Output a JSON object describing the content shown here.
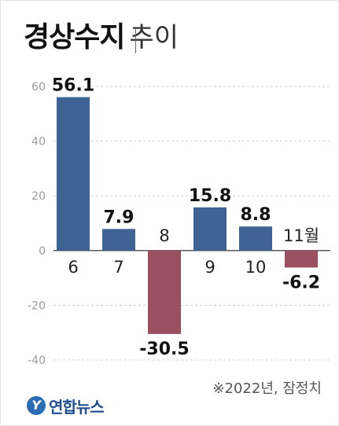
{
  "title": {
    "main": "경상수지",
    "sub": "추이"
  },
  "note": "※2022년, 잠정치",
  "logo": {
    "mark": "Y",
    "text": "연합뉴스"
  },
  "colors": {
    "positive": "#3f6394",
    "negative": "#9a5061",
    "axis_text": "#9a9a9a",
    "grid": "#d0d0d0",
    "zero_line": "#222222"
  },
  "chart_data": {
    "type": "bar",
    "title": "경상수지 추이",
    "categories": [
      "6",
      "7",
      "8",
      "9",
      "10",
      "11월"
    ],
    "values": [
      56.1,
      7.9,
      -30.5,
      15.8,
      8.8,
      -6.2
    ],
    "value_labels": [
      "56.1",
      "7.9",
      "-30.5",
      "15.8",
      "8.8",
      "-6.2"
    ],
    "ylim": [
      -40,
      60
    ],
    "yticks": [
      60,
      40,
      20,
      0,
      -20,
      -40
    ],
    "ytick_labels": [
      "60",
      "40",
      "20",
      "0",
      "-20",
      "-40"
    ],
    "grid": "dashed-horizontal",
    "xlabel": "",
    "ylabel": ""
  }
}
